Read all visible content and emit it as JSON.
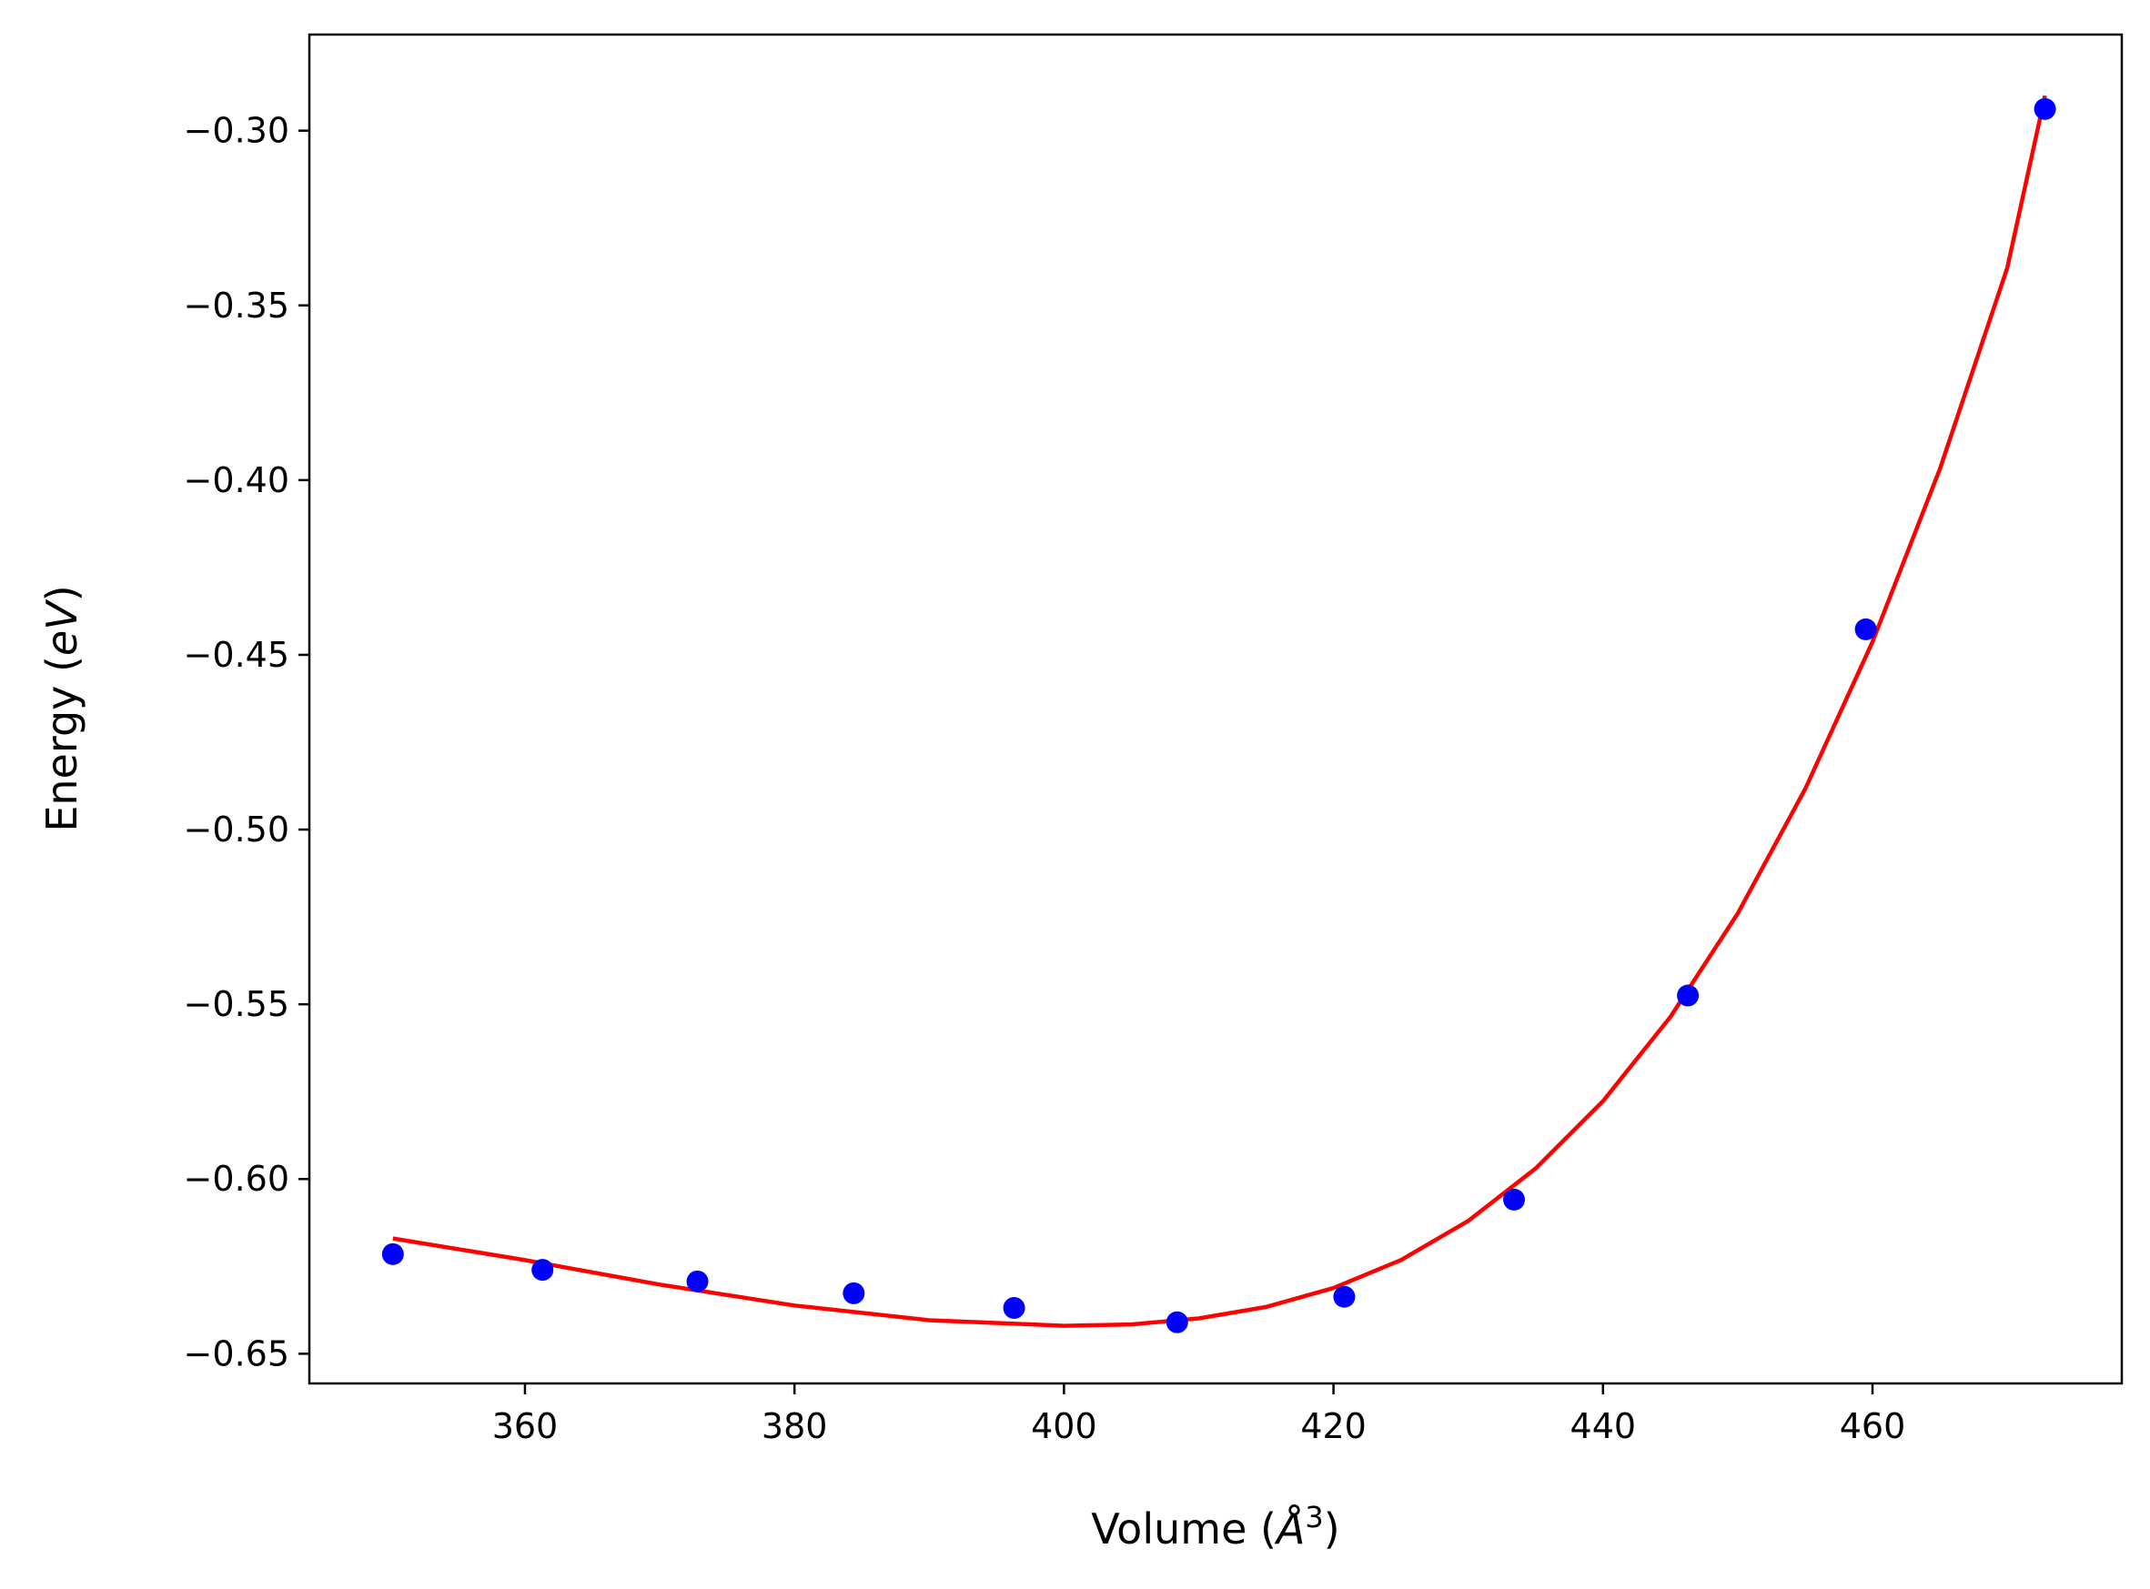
{
  "chart_data": {
    "type": "scatter",
    "xlabel": "Volume (Å³)",
    "xlabel_parts": {
      "main": "Volume (",
      "symbol": "Å",
      "exponent": "3",
      "close": ")"
    },
    "ylabel": "Energy (eV)",
    "ylabel_parts": {
      "main": "Energy (",
      "italic": "eV",
      "close": ")"
    },
    "xlim": [
      344.0,
      478.5
    ],
    "ylim": [
      -0.6585,
      -0.2725
    ],
    "x_ticks": [
      360,
      380,
      400,
      420,
      440,
      460
    ],
    "x_tick_labels": [
      "360",
      "380",
      "400",
      "420",
      "440",
      "460"
    ],
    "y_ticks": [
      -0.3,
      -0.35,
      -0.4,
      -0.45,
      -0.5,
      -0.55,
      -0.6,
      -0.65
    ],
    "y_tick_labels": [
      "−0.30",
      "−0.35",
      "−0.40",
      "−0.45",
      "−0.50",
      "−0.55",
      "−0.60",
      "−0.65"
    ],
    "grid": false,
    "series": [
      {
        "kind": "points",
        "color": "#0000ff",
        "x": [
          350.2,
          361.3,
          372.8,
          384.4,
          396.3,
          408.4,
          420.8,
          433.4,
          446.3,
          459.5,
          472.8
        ],
        "y": [
          -0.6215,
          -0.626,
          -0.6293,
          -0.6327,
          -0.6369,
          -0.641,
          -0.6337,
          -0.6059,
          -0.5475,
          -0.4427,
          -0.2938
        ]
      },
      {
        "kind": "fit-line",
        "color": "#ff0000",
        "x": [
          350.2,
          360,
          370,
          380,
          390,
          400,
          405,
          410,
          415,
          420,
          425,
          430,
          435,
          440,
          445,
          450,
          455,
          460,
          465,
          470,
          472.8
        ],
        "y": [
          -0.617,
          -0.6232,
          -0.6302,
          -0.6362,
          -0.6404,
          -0.642,
          -0.6416,
          -0.6399,
          -0.6366,
          -0.6312,
          -0.6232,
          -0.612,
          -0.597,
          -0.5777,
          -0.5536,
          -0.524,
          -0.4884,
          -0.4463,
          -0.3968,
          -0.3393,
          -0.29
        ]
      }
    ]
  }
}
